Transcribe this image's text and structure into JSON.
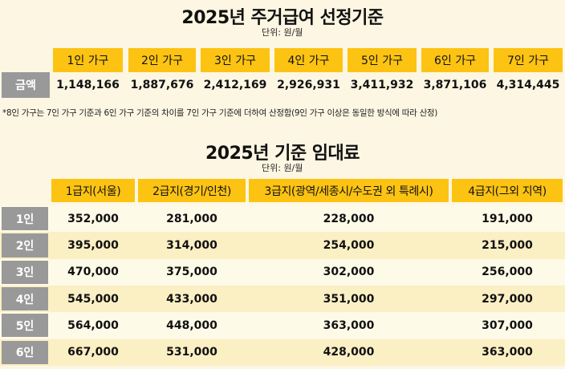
{
  "section1": {
    "title": "2025년 주거급여 선정기준",
    "unit": "단위: 원/월",
    "row_header": "금액",
    "columns": [
      "1인 가구",
      "2인 가구",
      "3인 가구",
      "4인 가구",
      "5인 가구",
      "6인 가구",
      "7인 가구"
    ],
    "values": [
      "1,148,166",
      "1,887,676",
      "2,412,169",
      "2,926,931",
      "3,411,932",
      "3,871,106",
      "4,314,445"
    ],
    "note": "*8인 가구는 7인 가구 기준과 6인 가구 기준의 차이를 7인 가구 기준에 더하여 산정함(9인 가구 이상은 동일한 방식에 따라 산정)"
  },
  "section2": {
    "title": "2025년 기준 임대료",
    "unit": "단위: 원/월",
    "columns": [
      "1급지(서울)",
      "2급지(경기/인천)",
      "3급지(광역/세종시/수도권 외 특례시)",
      "4급지(그외 지역)"
    ],
    "rows": [
      {
        "label": "1인",
        "values": [
          "352,000",
          "281,000",
          "228,000",
          "191,000"
        ]
      },
      {
        "label": "2인",
        "values": [
          "395,000",
          "314,000",
          "254,000",
          "215,000"
        ]
      },
      {
        "label": "3인",
        "values": [
          "470,000",
          "375,000",
          "302,000",
          "256,000"
        ]
      },
      {
        "label": "4인",
        "values": [
          "545,000",
          "433,000",
          "351,000",
          "297,000"
        ]
      },
      {
        "label": "5인",
        "values": [
          "564,000",
          "448,000",
          "363,000",
          "307,000"
        ]
      },
      {
        "label": "6인",
        "values": [
          "667,000",
          "531,000",
          "428,000",
          "363,000"
        ]
      }
    ]
  },
  "colors": {
    "header": "#fcc312",
    "row_header": "#999999",
    "background": "#fdf6e3",
    "stripe_light": "#fefae8",
    "stripe_dark": "#fbefc4"
  }
}
